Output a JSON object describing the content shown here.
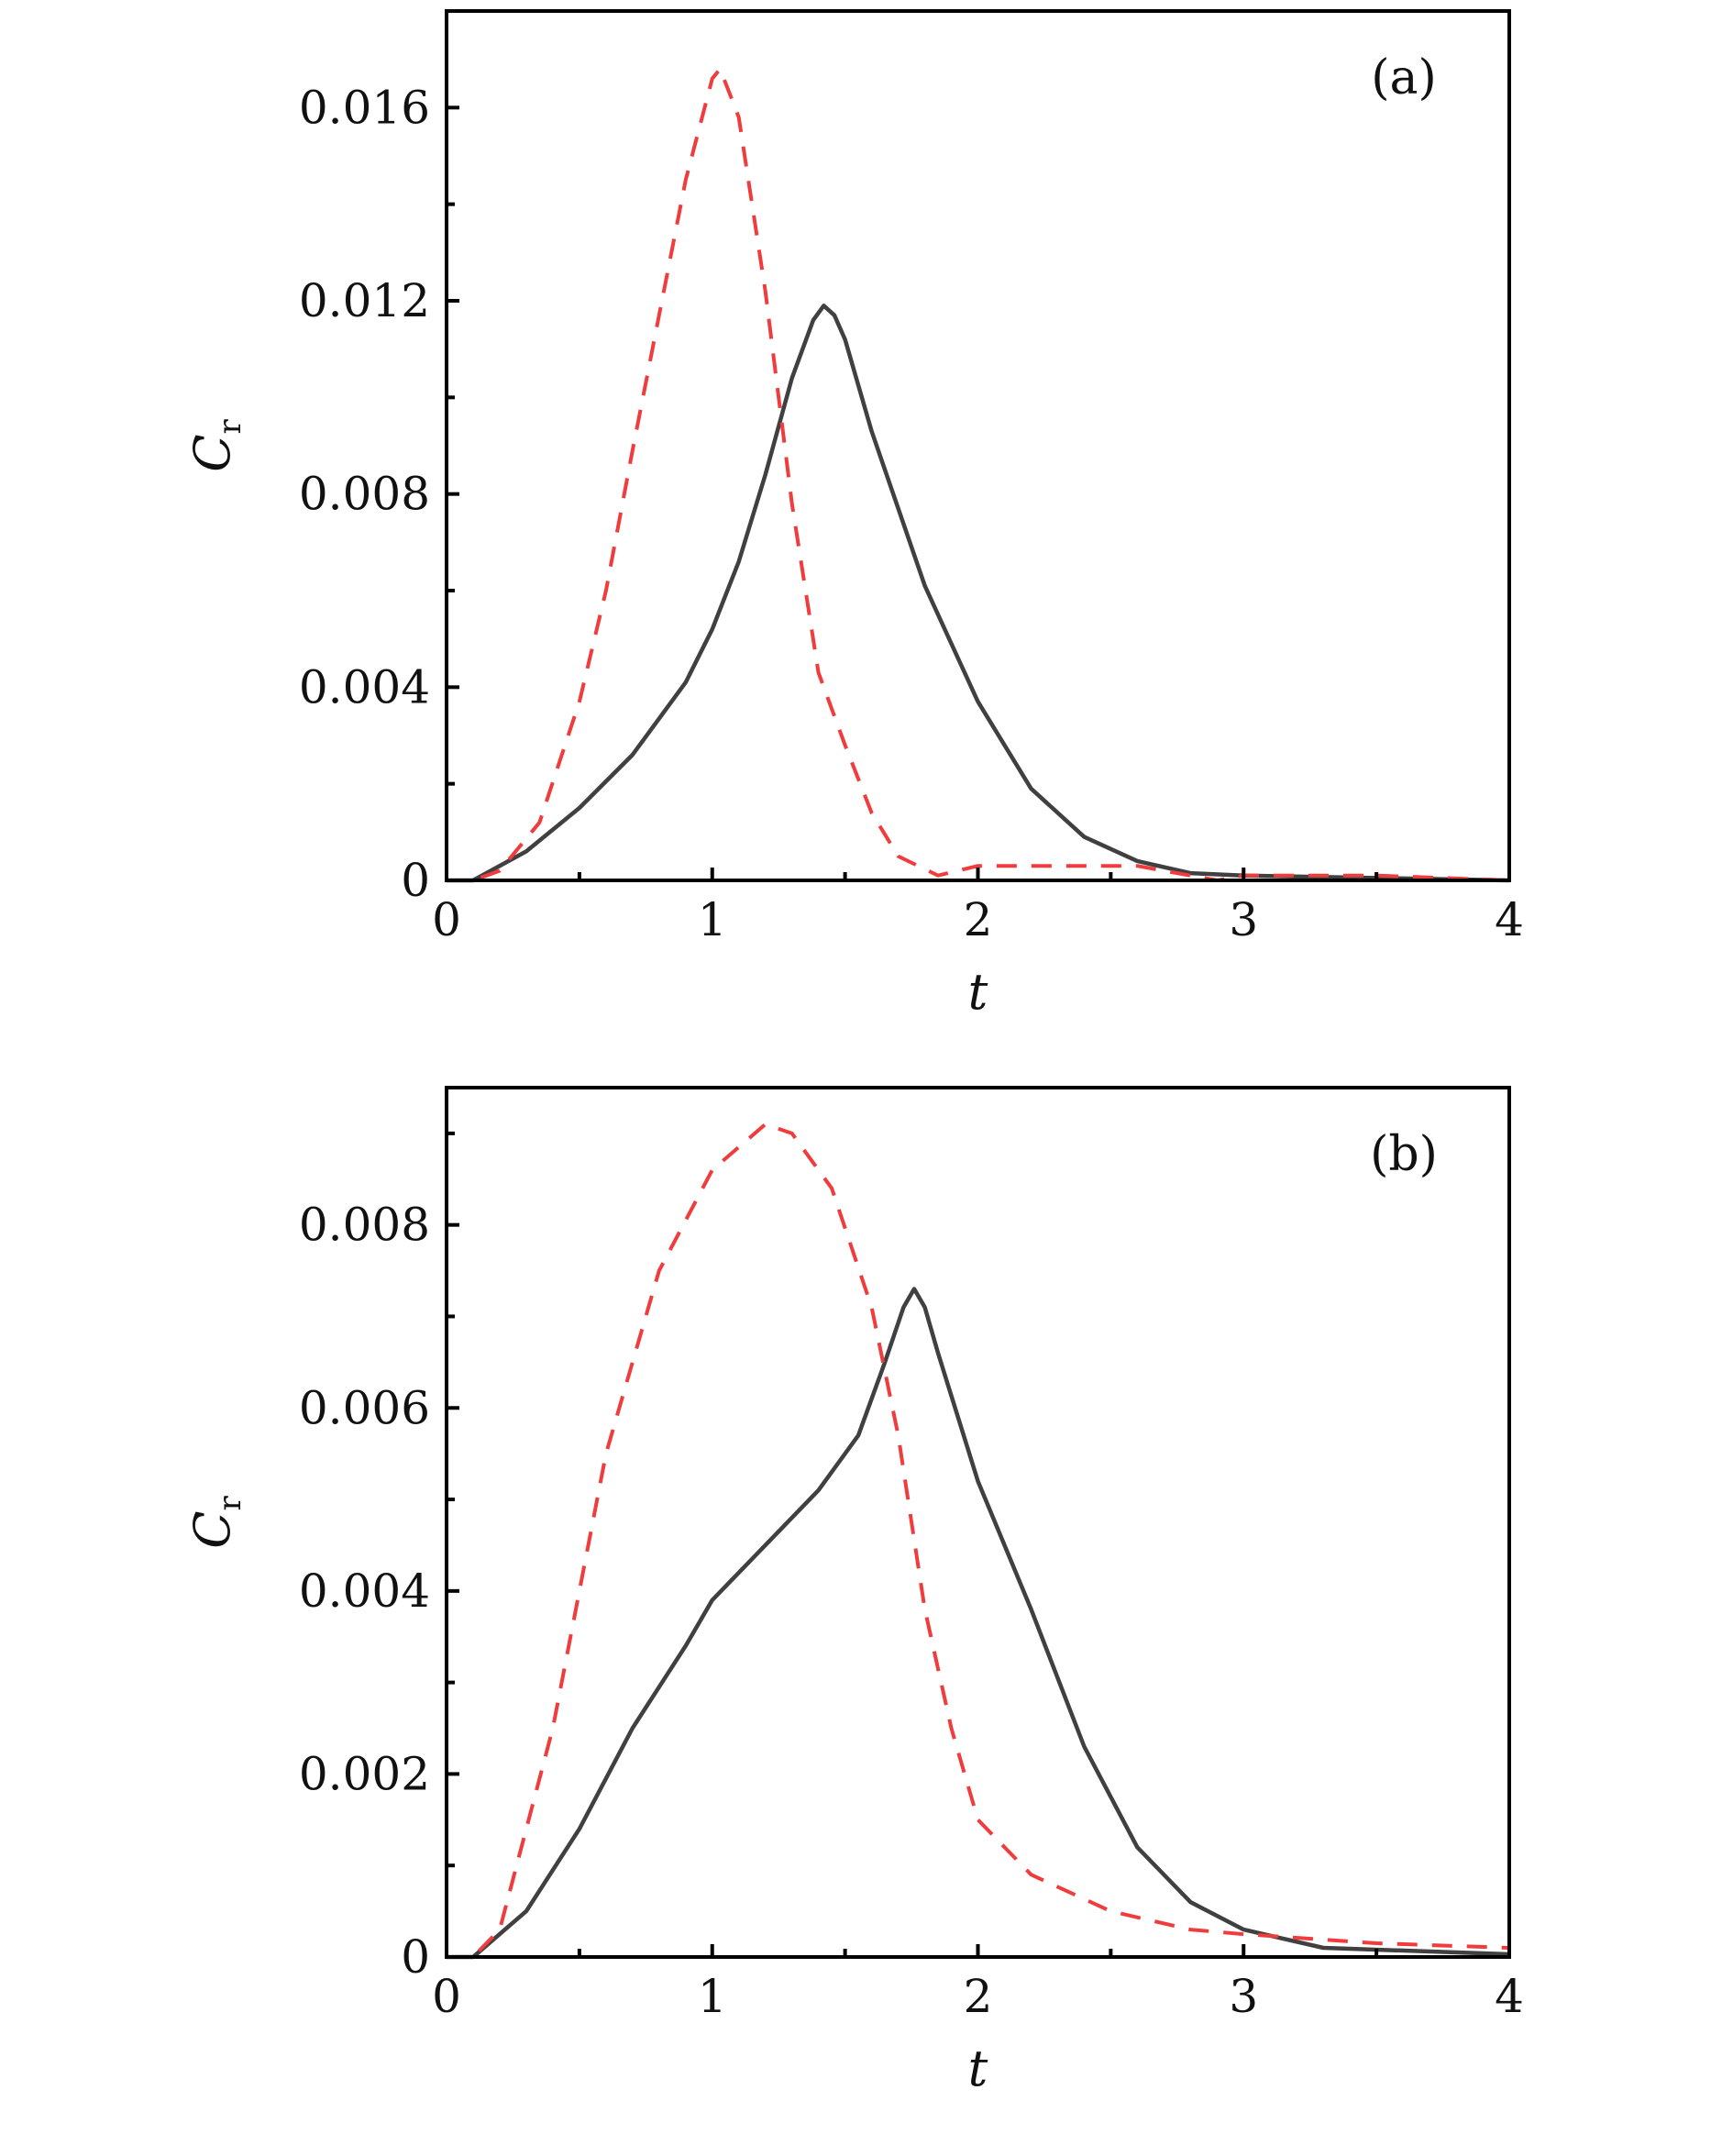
{
  "chart_data": [
    {
      "type": "line",
      "panel_label": "(a)",
      "xlabel": "t",
      "ylabel": "C",
      "ylabel_subscript": "r",
      "xlim": [
        0,
        4
      ],
      "ylim": [
        0,
        0.018
      ],
      "xticks": [
        0,
        1,
        2,
        3,
        4
      ],
      "xtick_labels": [
        "0",
        "1",
        "2",
        "3",
        "4"
      ],
      "yticks": [
        0,
        0.004,
        0.008,
        0.012,
        0.016
      ],
      "ytick_labels": [
        "0",
        "0.004",
        "0.008",
        "0.012",
        "0.016"
      ],
      "grid": false,
      "series": [
        {
          "style": "solid",
          "color": "#404040",
          "x": [
            0,
            0.1,
            0.3,
            0.5,
            0.7,
            0.9,
            1.0,
            1.1,
            1.2,
            1.3,
            1.38,
            1.42,
            1.46,
            1.5,
            1.6,
            1.8,
            2.0,
            2.2,
            2.4,
            2.6,
            2.8,
            3.0,
            3.5,
            4.0
          ],
          "y": [
            0,
            0,
            0.0006,
            0.0015,
            0.0026,
            0.0041,
            0.0052,
            0.0066,
            0.0084,
            0.0104,
            0.0116,
            0.0119,
            0.0117,
            0.0112,
            0.0093,
            0.0061,
            0.0037,
            0.0019,
            0.0009,
            0.0004,
            0.00015,
            0.0001,
            5e-05,
            0
          ]
        },
        {
          "style": "dashed",
          "color": "#f03c3c",
          "x": [
            0,
            0.1,
            0.2,
            0.35,
            0.5,
            0.6,
            0.7,
            0.8,
            0.9,
            1.0,
            1.03,
            1.1,
            1.2,
            1.3,
            1.4,
            1.5,
            1.6,
            1.7,
            1.85,
            2.0,
            2.6,
            2.9,
            3.0,
            3.5,
            4.0
          ],
          "y": [
            0,
            0,
            0.0002,
            0.0012,
            0.0037,
            0.006,
            0.0089,
            0.0117,
            0.0145,
            0.0166,
            0.0168,
            0.0158,
            0.0122,
            0.0078,
            0.0043,
            0.0028,
            0.0014,
            0.0005,
            0.0001,
            0.0003,
            0.0003,
            0,
            0.0001,
            0.0001,
            0
          ]
        }
      ]
    },
    {
      "type": "line",
      "panel_label": "(b)",
      "xlabel": "t",
      "ylabel": "C",
      "ylabel_subscript": "r",
      "xlim": [
        0,
        4
      ],
      "ylim": [
        0,
        0.0095
      ],
      "xticks": [
        0,
        1,
        2,
        3,
        4
      ],
      "xtick_labels": [
        "0",
        "1",
        "2",
        "3",
        "4"
      ],
      "yticks": [
        0,
        0.002,
        0.004,
        0.006,
        0.008
      ],
      "ytick_labels": [
        "0",
        "0.002",
        "0.004",
        "0.006",
        "0.008"
      ],
      "grid": false,
      "series": [
        {
          "style": "solid",
          "color": "#404040",
          "x": [
            0,
            0.1,
            0.3,
            0.5,
            0.7,
            0.9,
            1.0,
            1.2,
            1.4,
            1.55,
            1.65,
            1.72,
            1.76,
            1.8,
            1.85,
            2.0,
            2.2,
            2.4,
            2.6,
            2.8,
            3.0,
            3.3,
            4.0
          ],
          "y": [
            0,
            0,
            0.0005,
            0.0014,
            0.0025,
            0.0034,
            0.0039,
            0.0045,
            0.0051,
            0.0057,
            0.0065,
            0.0071,
            0.0073,
            0.0071,
            0.0066,
            0.0052,
            0.0038,
            0.0023,
            0.0012,
            0.0006,
            0.0003,
            0.0001,
            3e-05
          ]
        },
        {
          "style": "dashed",
          "color": "#f03c3c",
          "x": [
            0,
            0.1,
            0.2,
            0.4,
            0.6,
            0.8,
            1.0,
            1.2,
            1.3,
            1.45,
            1.6,
            1.7,
            1.8,
            1.9,
            2.0,
            2.2,
            2.5,
            2.8,
            3.0,
            3.5,
            4.0
          ],
          "y": [
            0,
            0,
            0.0003,
            0.0025,
            0.0055,
            0.0075,
            0.0086,
            0.0091,
            0.009,
            0.0084,
            0.0071,
            0.0057,
            0.0038,
            0.0025,
            0.0015,
            0.0009,
            0.0005,
            0.0003,
            0.00025,
            0.00015,
            0.0001
          ]
        }
      ]
    }
  ]
}
